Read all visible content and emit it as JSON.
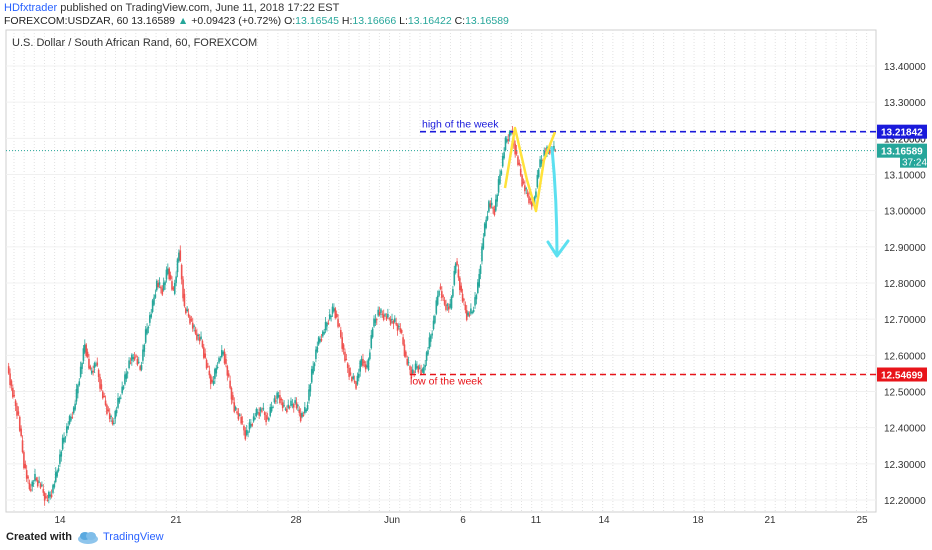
{
  "header": {
    "author": "HDfxtrader",
    "published": "published on TradingView.com, June 11, 2018 17:22 EST",
    "symbol": "FOREXCOM:USDZAR, 60",
    "last": "13.16589",
    "change": "+0.09423 (+0.72%)",
    "o_label": "O:",
    "o_value": "13.16545",
    "h_label": "H:",
    "h_value": "13.16666",
    "l_label": "L:",
    "l_value": "13.16422",
    "c_label": "C:",
    "c_value": "13.16589"
  },
  "footer": {
    "created_with": "Created with",
    "brand": "TradingView"
  },
  "colors": {
    "up": "#26a69a",
    "down": "#ef5350",
    "high_line": "#1a1adb",
    "low_line": "#e8141a",
    "current_line": "#26a69a",
    "yellow": "#ffe23a",
    "cyan": "#5ce0f0"
  },
  "chart_data": {
    "type": "candlestick",
    "title": "U.S. Dollar / South African Rand, 60, FOREXCOM",
    "ylim": [
      12.16,
      13.5
    ],
    "y_ticks": [
      "13.40000",
      "13.30000",
      "13.20000",
      "13.10000",
      "13.00000",
      "12.90000",
      "12.80000",
      "12.70000",
      "12.60000",
      "12.50000",
      "12.40000",
      "12.30000",
      "12.20000"
    ],
    "x_ticks": [
      "14",
      "21",
      "28",
      "Jun",
      "6",
      "11",
      "14",
      "18",
      "21",
      "25"
    ],
    "grid": true,
    "price_series": [
      12.57,
      12.49,
      12.43,
      12.3,
      12.23,
      12.26,
      12.24,
      12.2,
      12.22,
      12.28,
      12.36,
      12.41,
      12.45,
      12.54,
      12.63,
      12.55,
      12.58,
      12.5,
      12.45,
      12.41,
      12.47,
      12.52,
      12.58,
      12.6,
      12.56,
      12.66,
      12.72,
      12.8,
      12.78,
      12.84,
      12.77,
      12.89,
      12.73,
      12.7,
      12.66,
      12.64,
      12.57,
      12.52,
      12.58,
      12.61,
      12.53,
      12.45,
      12.43,
      12.38,
      12.41,
      12.44,
      12.45,
      12.42,
      12.47,
      12.49,
      12.45,
      12.46,
      12.47,
      12.43,
      12.45,
      12.55,
      12.63,
      12.66,
      12.7,
      12.73,
      12.67,
      12.59,
      12.54,
      12.52,
      12.59,
      12.56,
      12.68,
      12.72,
      12.71,
      12.7,
      12.69,
      12.67,
      12.59,
      12.55,
      12.57,
      12.55,
      12.62,
      12.69,
      12.79,
      12.74,
      12.73,
      12.86,
      12.77,
      12.71,
      12.72,
      12.79,
      12.93,
      13.02,
      13.0,
      13.1,
      13.19,
      13.22,
      13.15,
      13.08,
      13.04,
      13.01,
      13.12,
      13.16,
      13.17,
      13.166
    ],
    "annotations": {
      "high_label": "high of the week",
      "high_value": "13.21842",
      "low_label": "low of the week",
      "low_value": "12.54699",
      "current_value": "13.16589",
      "countdown": "37:24",
      "behind_current": "13.20000"
    }
  }
}
